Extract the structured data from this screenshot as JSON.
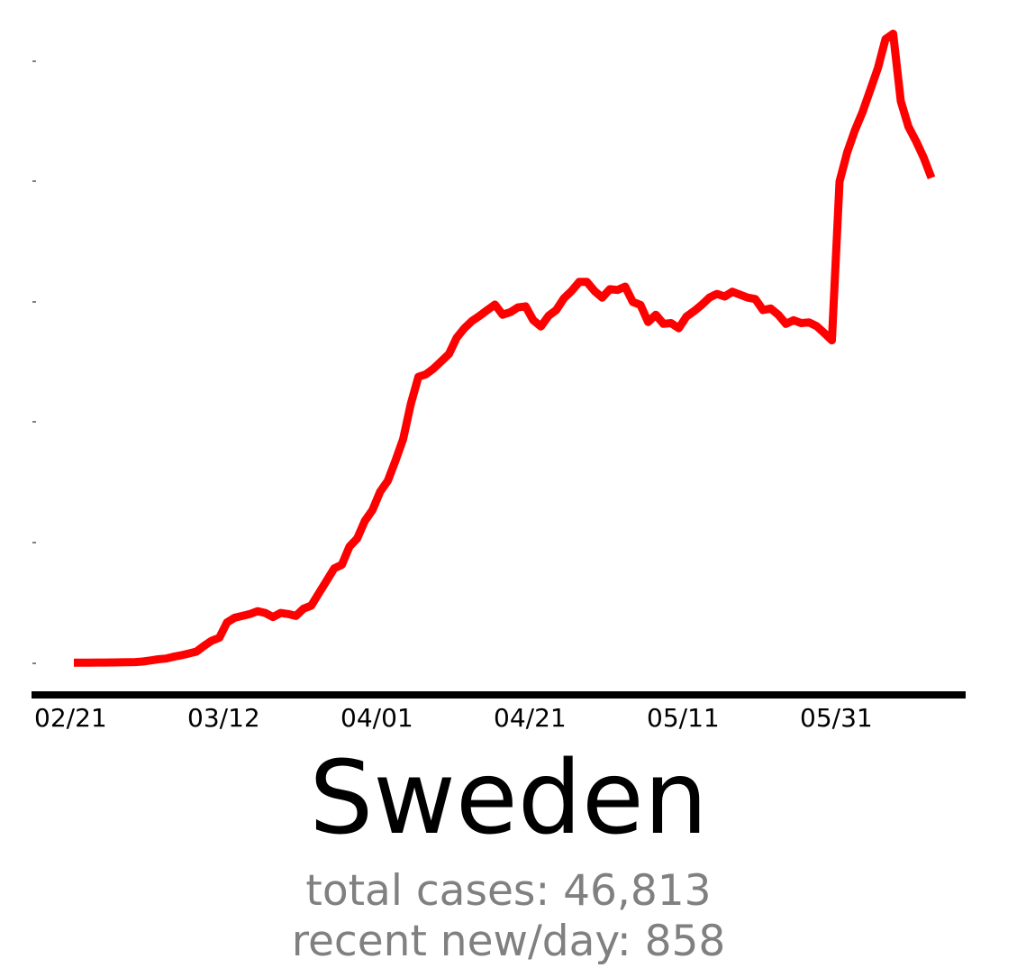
{
  "chart_data": {
    "type": "line",
    "title": "Sweden",
    "xlabel": "",
    "ylabel": "",
    "x_tick_labels": [
      "02/21",
      "03/12",
      "04/01",
      "04/21",
      "05/11",
      "05/31"
    ],
    "x_start": "02/20",
    "x_end": "06/08",
    "grid": false,
    "legend": "none",
    "series": [
      {
        "color": "#ff0000",
        "values": [
          2,
          2,
          2,
          2.2,
          2.3,
          2.5,
          2.7,
          3,
          3.5,
          5,
          8,
          11,
          13,
          18,
          22,
          27,
          32,
          48,
          62,
          70,
          112,
          125,
          130,
          135,
          143,
          138,
          127,
          138,
          135,
          130,
          150,
          158,
          192,
          226,
          260,
          270,
          320,
          342,
          390,
          420,
          470,
          500,
          555,
          614,
          710,
          785,
          792,
          808,
          828,
          848,
          892,
          918,
          938,
          952,
          968,
          983,
          955,
          962,
          975,
          978,
          940,
          923,
          952,
          968,
          1000,
          1020,
          1045,
          1045,
          1020,
          1002,
          1025,
          1023,
          1032,
          990,
          982,
          935,
          955,
          930,
          932,
          918,
          950,
          965,
          982,
          1002,
          1012,
          1005,
          1018,
          1010,
          1002,
          998,
          968,
          972,
          955,
          930,
          940,
          932,
          934,
          924,
          905,
          885,
          1320,
          1400,
          1460,
          1510,
          1570,
          1630,
          1710,
          1725,
          1540,
          1470,
          1430,
          1385,
          1330
        ]
      }
    ]
  },
  "title": "Sweden",
  "stats": {
    "total_cases": "total cases: 46,813",
    "recent_new": "recent new/day: 858"
  }
}
